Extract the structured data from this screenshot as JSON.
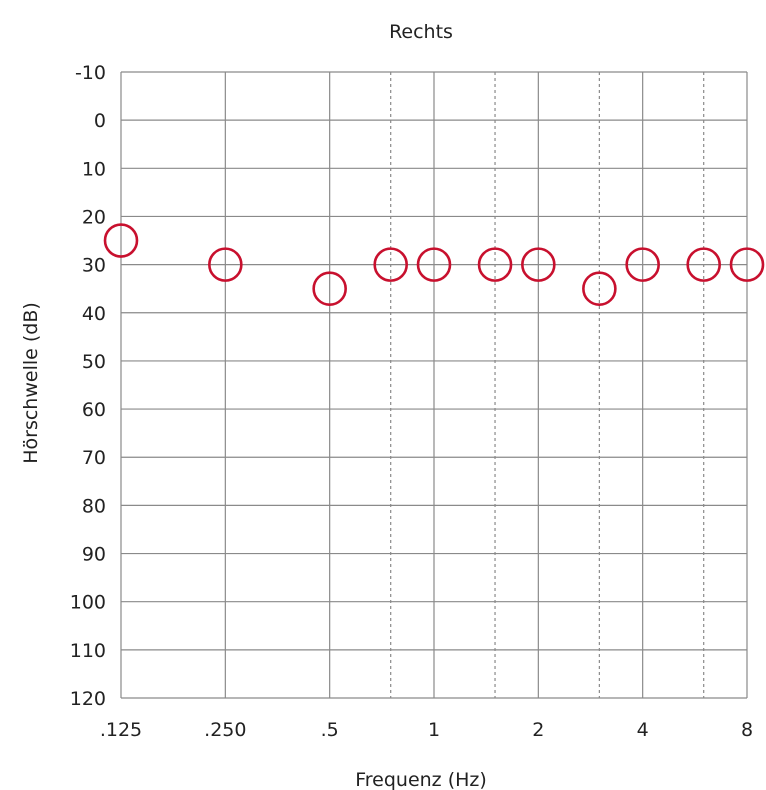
{
  "chart_data": {
    "type": "scatter",
    "title": "Rechts",
    "xlabel": "Frequenz (Hz)",
    "ylabel": "Hörschwelle (dB)",
    "x_ticks": [
      ".125",
      ".250",
      ".5",
      "1",
      "2",
      "4",
      "8"
    ],
    "x_values": [
      0.125,
      0.25,
      0.5,
      0.75,
      1,
      1.5,
      2,
      3,
      4,
      6,
      8
    ],
    "minor_x_values": [
      0.75,
      1.5,
      3,
      6
    ],
    "y_ticks": [
      "-10",
      "0",
      "10",
      "20",
      "30",
      "40",
      "50",
      "60",
      "70",
      "80",
      "90",
      "100",
      "110",
      "120"
    ],
    "ylim": [
      -10,
      120
    ],
    "y_inverted": true,
    "x_scale": "log2",
    "grid": true,
    "series": [
      {
        "marker": "circle",
        "color": "#C8102E",
        "points": [
          {
            "x": 0.125,
            "y": 25
          },
          {
            "x": 0.25,
            "y": 30
          },
          {
            "x": 0.5,
            "y": 35
          },
          {
            "x": 0.75,
            "y": 30
          },
          {
            "x": 1,
            "y": 30
          },
          {
            "x": 1.5,
            "y": 30
          },
          {
            "x": 2,
            "y": 30
          },
          {
            "x": 3,
            "y": 35
          },
          {
            "x": 4,
            "y": 30
          },
          {
            "x": 6,
            "y": 30
          },
          {
            "x": 8,
            "y": 30
          }
        ]
      }
    ],
    "colors": {
      "grid": "#8a8a8a",
      "marker": "#C8102E",
      "text": "#222222"
    }
  }
}
